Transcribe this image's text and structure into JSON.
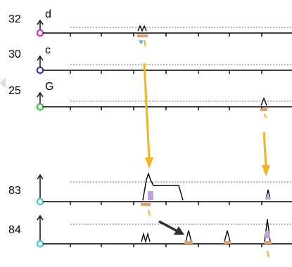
{
  "colors": {
    "axis": "#000000",
    "dotted_baseline": "#6b6f9b",
    "arrow_yellow": "#f2b321",
    "arrow_dark": "#303030",
    "message_orange": "#e7a06c",
    "message_purple": "#c1a5d8",
    "message_blue": "#62a6d6",
    "side_arrow": "#d9dee6"
  },
  "tracks": [
    {
      "id": "track-32",
      "number": "32",
      "letter": "d",
      "dot_color": "#dd22bb"
    },
    {
      "id": "track-30",
      "number": "30",
      "letter": "c",
      "dot_color": "#1d2fb8"
    },
    {
      "id": "track-25",
      "number": "25",
      "letter": "G",
      "dot_color": "#2ebf2e"
    },
    {
      "id": "track-83",
      "number": "83",
      "letter": "",
      "dot_color": "#33c4d8"
    },
    {
      "id": "track-84",
      "number": "84",
      "letter": "",
      "dot_color": "#33c4d8"
    }
  ],
  "icons": {
    "up_arrow": "axis-up-arrow-icon",
    "left_arrow": "left-edge-arrow-icon",
    "yellow_arrow": "yellow-arrow-icon",
    "dark_arrow": "dark-pointer-arrow-icon",
    "marker_peak": "event-marker-icon"
  }
}
